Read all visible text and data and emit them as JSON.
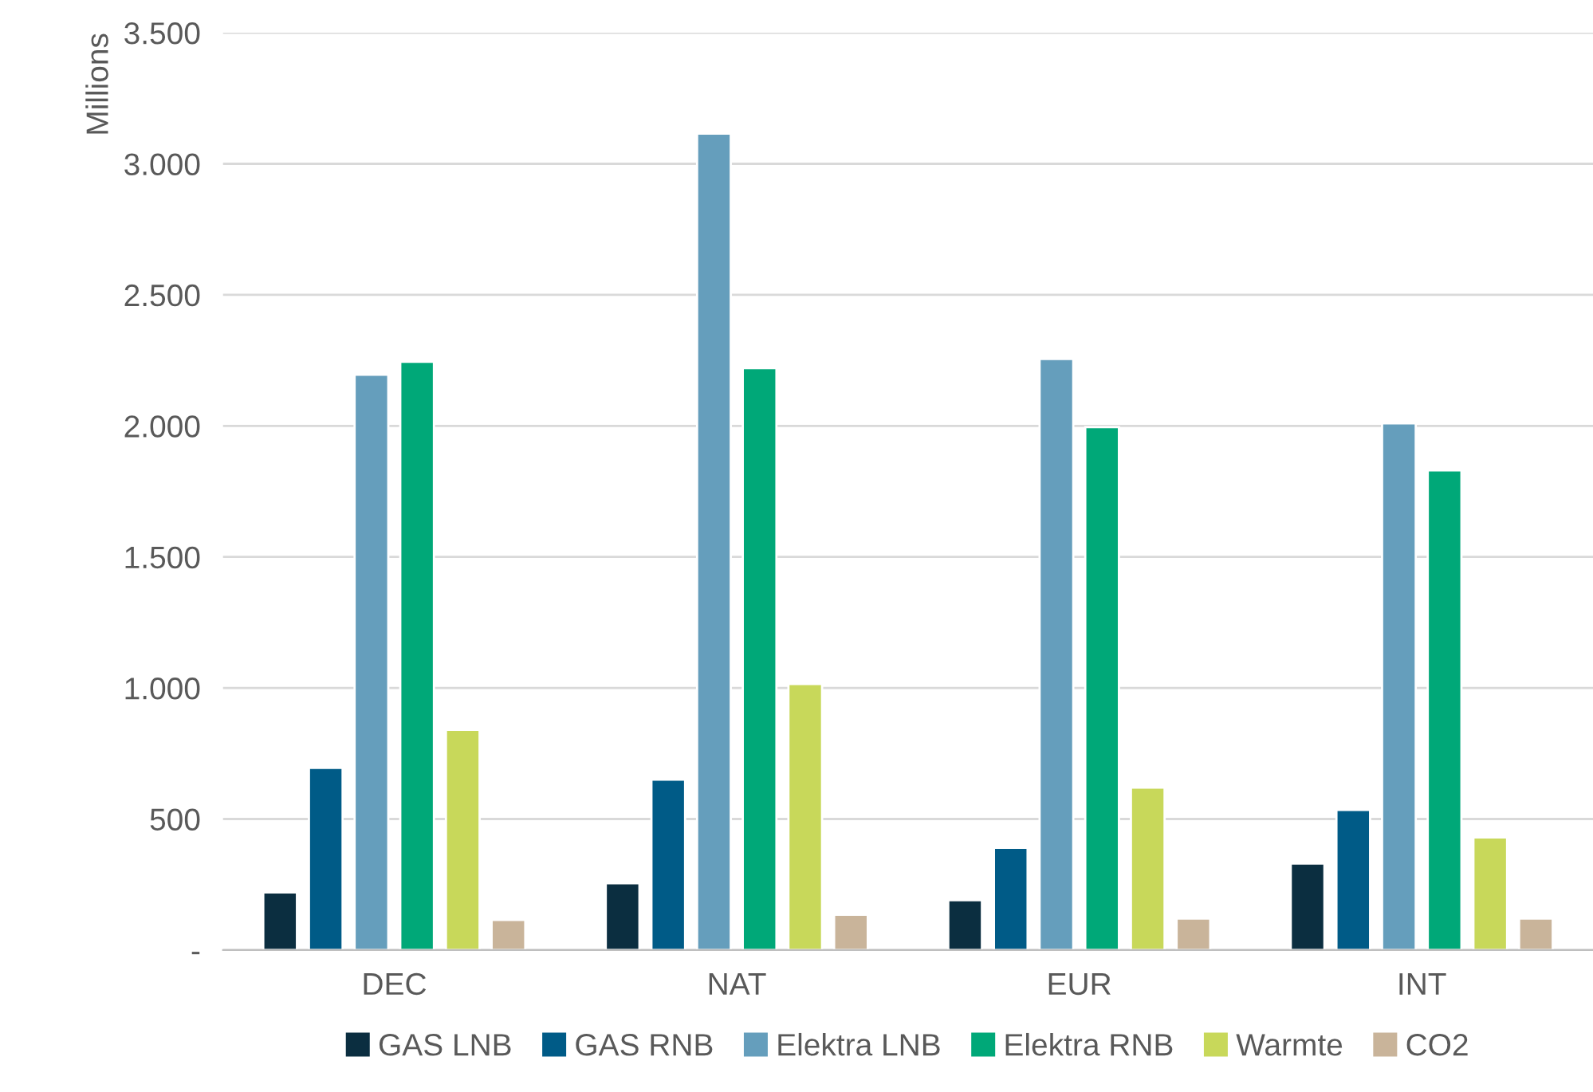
{
  "chart_data": {
    "type": "bar",
    "ylabel": "Millions",
    "categories": [
      "DEC",
      "NAT",
      "EUR",
      "INT"
    ],
    "series": [
      {
        "name": "GAS LNB",
        "color": "#0b2e40",
        "values": [
          220,
          255,
          190,
          330
        ]
      },
      {
        "name": "GAS RNB",
        "color": "#005b87",
        "values": [
          695,
          650,
          390,
          535
        ]
      },
      {
        "name": "Elektra LNB",
        "color": "#659ebc",
        "values": [
          2195,
          3115,
          2255,
          2010
        ]
      },
      {
        "name": "Elektra RNB",
        "color": "#00a878",
        "values": [
          2245,
          2220,
          1995,
          1830
        ]
      },
      {
        "name": "Warmte",
        "color": "#c8d85a",
        "values": [
          840,
          1015,
          620,
          430
        ]
      },
      {
        "name": "CO2",
        "color": "#c9b49a",
        "values": [
          115,
          135,
          120,
          120
        ]
      }
    ],
    "ylim": [
      0,
      3500
    ],
    "yticks": [
      {
        "value": 0,
        "label": "-"
      },
      {
        "value": 500,
        "label": "500"
      },
      {
        "value": 1000,
        "label": "1.000"
      },
      {
        "value": 1500,
        "label": "1.500"
      },
      {
        "value": 2000,
        "label": "2.000"
      },
      {
        "value": 2500,
        "label": "2.500"
      },
      {
        "value": 3000,
        "label": "3.000"
      },
      {
        "value": 3500,
        "label": "3.500"
      }
    ],
    "grid": "y",
    "legend": "bottom"
  }
}
